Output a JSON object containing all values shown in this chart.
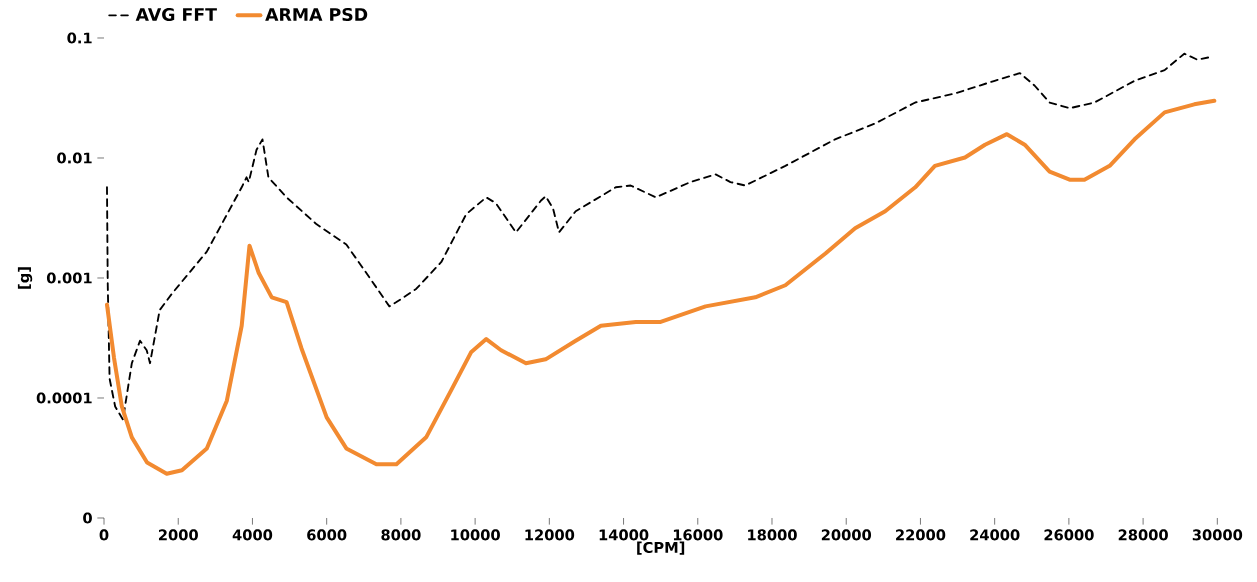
{
  "chart_data": {
    "type": "line",
    "xlabel": "[CPM]",
    "ylabel": "[g]",
    "log": "y",
    "legend": "top left",
    "grid": false,
    "xlim": [
      0,
      30000
    ],
    "xticks": [
      0,
      2000,
      4000,
      6000,
      8000,
      10000,
      12000,
      14000,
      16000,
      18000,
      20000,
      22000,
      24000,
      26000,
      28000,
      30000
    ],
    "ylim": [
      1e-05,
      0.1
    ],
    "yticks": [
      {
        "value": 1e-05,
        "label": "0"
      },
      0.0001,
      0.001,
      0.01,
      0.1
    ],
    "series": [
      {
        "name": "AVG FFT",
        "color": "#000000",
        "line_style": "dashed",
        "x": [
          80,
          100,
          150,
          300,
          510,
          750,
          970,
          1150,
          1240,
          1500,
          1830,
          2770,
          3710,
          3840,
          3900,
          4110,
          4270,
          4430,
          4920,
          5730,
          6530,
          7070,
          7690,
          7880,
          8410,
          9090,
          9760,
          10300,
          10560,
          11100,
          11770,
          11900,
          12100,
          12260,
          12710,
          13790,
          14190,
          14870,
          15800,
          16480,
          16880,
          17280,
          18360,
          19700,
          20780,
          21860,
          22930,
          24000,
          24680,
          25080,
          25480,
          26020,
          26690,
          27770,
          28580,
          29110,
          29460,
          29780
        ],
        "values": [
          0.0057,
          0.00091,
          0.000145,
          8.5e-05,
          6.6e-05,
          0.000195,
          0.0003,
          0.00025,
          0.000195,
          0.00054,
          0.00074,
          0.00166,
          0.0057,
          0.0069,
          0.0063,
          0.0117,
          0.0143,
          0.0069,
          0.0047,
          0.0028,
          0.0019,
          0.0011,
          0.00058,
          0.00063,
          0.00081,
          0.00136,
          0.0034,
          0.0047,
          0.0042,
          0.0024,
          0.0044,
          0.0048,
          0.0038,
          0.0024,
          0.0036,
          0.0057,
          0.0059,
          0.0047,
          0.0063,
          0.0073,
          0.0063,
          0.0059,
          0.0086,
          0.0143,
          0.0194,
          0.029,
          0.0345,
          0.044,
          0.051,
          0.04,
          0.029,
          0.026,
          0.029,
          0.044,
          0.054,
          0.074,
          0.066,
          0.069
        ]
      },
      {
        "name": "ARMA PSD",
        "color": "#f28a30",
        "line_style": "solid",
        "x": [
          80,
          270,
          480,
          750,
          1160,
          1690,
          2100,
          2770,
          3310,
          3710,
          3920,
          4170,
          4520,
          4920,
          5320,
          6000,
          6530,
          7340,
          7880,
          8680,
          9360,
          9890,
          10300,
          10700,
          11370,
          11900,
          12710,
          13390,
          14330,
          15000,
          16210,
          17550,
          18360,
          19440,
          20240,
          21050,
          21860,
          22390,
          23200,
          23740,
          24330,
          24810,
          25480,
          26020,
          26420,
          27100,
          27770,
          28580,
          29380,
          29920
        ],
        "values": [
          0.0006,
          0.000215,
          8.5e-05,
          4.7e-05,
          2.9e-05,
          2.34e-05,
          2.5e-05,
          3.8e-05,
          9.5e-05,
          0.0004,
          0.00186,
          0.0011,
          0.00069,
          0.00063,
          0.00026,
          6.9e-05,
          3.8e-05,
          2.8e-05,
          2.8e-05,
          4.7e-05,
          0.000117,
          0.00024,
          0.00031,
          0.00025,
          0.000195,
          0.00021,
          0.0003,
          0.0004,
          0.00043,
          0.00043,
          0.00058,
          0.00069,
          0.00087,
          0.0016,
          0.0026,
          0.0036,
          0.0057,
          0.0086,
          0.0101,
          0.0129,
          0.0158,
          0.0129,
          0.0077,
          0.0066,
          0.0066,
          0.0086,
          0.0143,
          0.024,
          0.028,
          0.03
        ]
      }
    ]
  }
}
